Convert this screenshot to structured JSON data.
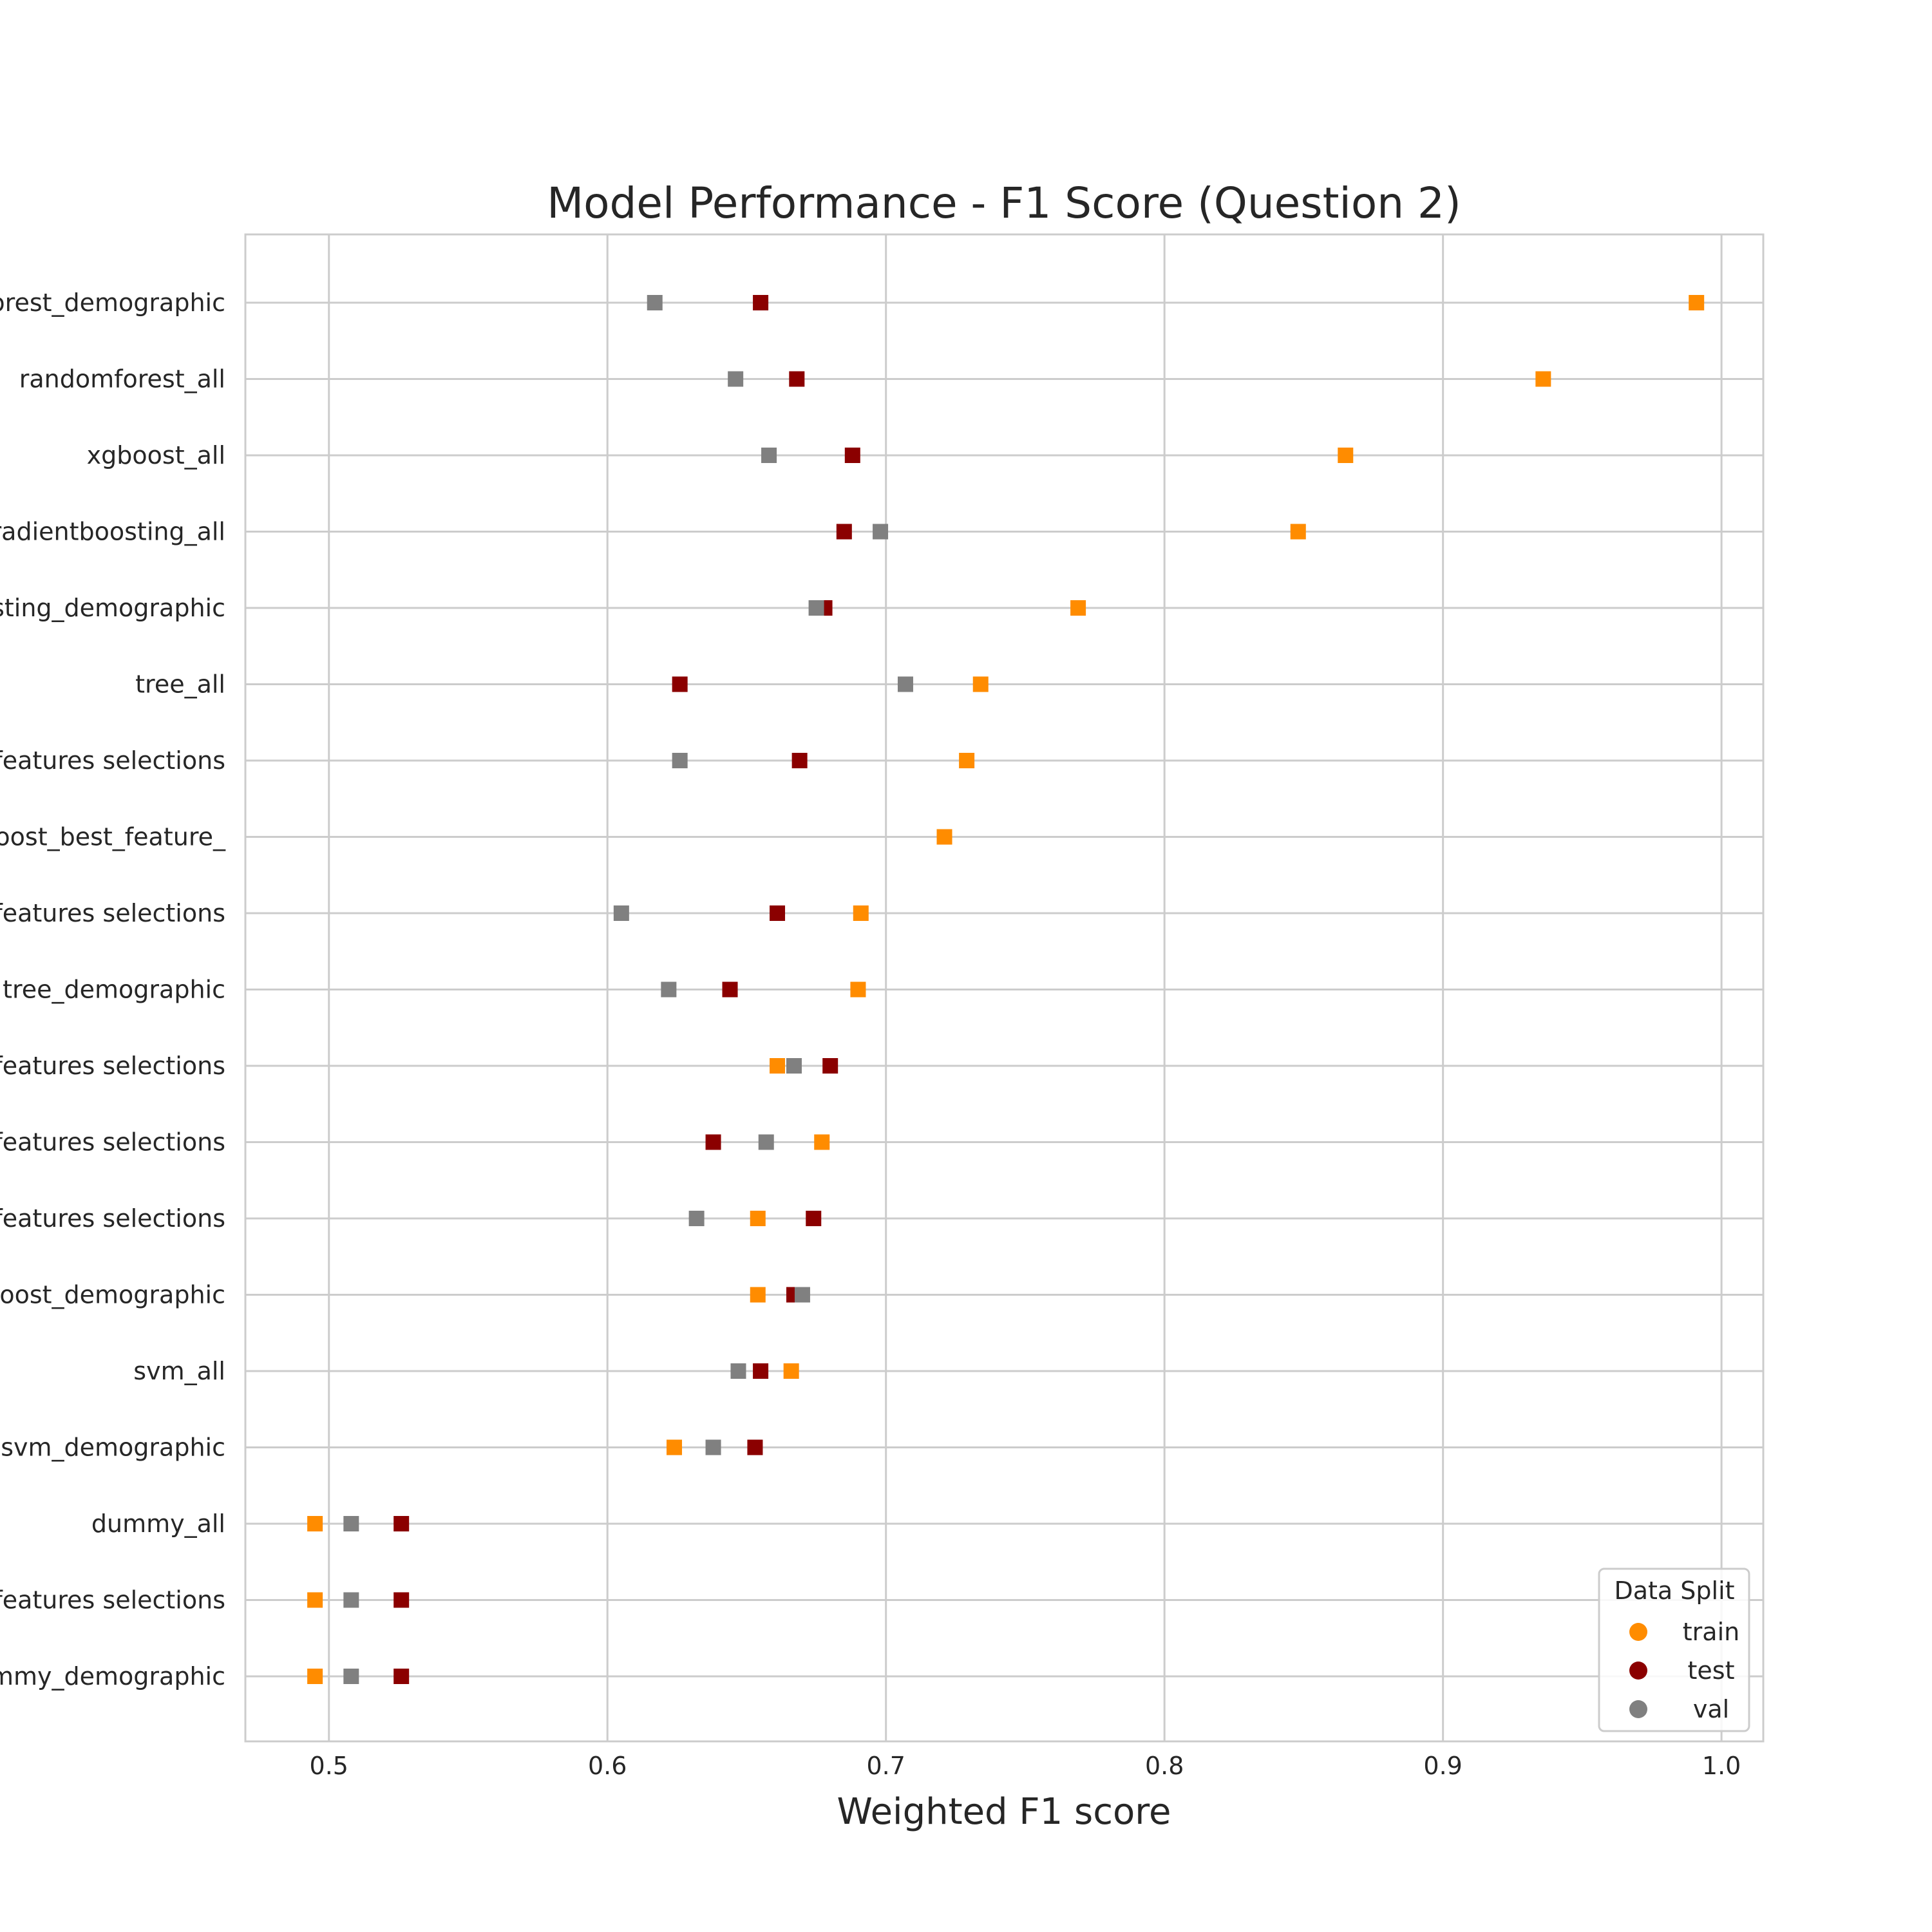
{
  "chart_data": {
    "type": "scatter",
    "title": "Model Performance - F1 Score (Question 2)",
    "xlabel": "Weighted F1 score",
    "ylabel": "",
    "xlim": [
      0.47,
      1.015
    ],
    "xticks": [
      0.5,
      0.6,
      0.7,
      0.8,
      0.9,
      1.0
    ],
    "xtick_labels": [
      "0.5",
      "0.6",
      "0.7",
      "0.8",
      "0.9",
      "1.0"
    ],
    "grid": true,
    "legend_position": "bottom-right",
    "legend_title": "Data Split",
    "categories": [
      "orest_demographic",
      "randomforest_all",
      "xgboost_all",
      "radientboosting_all",
      "sting_demographic",
      "tree_all",
      "features selections",
      "oost_best_feature_",
      "features selections",
      "tree_demographic",
      "features selections",
      "features selections",
      "features selections",
      "boost_demographic",
      "svm_all",
      "svm_demographic",
      "dummy_all",
      "features selections",
      "mmy_demographic"
    ],
    "series": [
      {
        "name": "train",
        "color": "#ff8c00",
        "values": [
          0.991,
          0.936,
          0.865,
          0.848,
          0.769,
          0.734,
          0.729,
          0.721,
          0.691,
          0.69,
          0.661,
          0.677,
          0.654,
          0.654,
          0.666,
          0.624,
          0.495,
          0.495,
          0.495
        ]
      },
      {
        "name": "test",
        "color": "#8b0000",
        "values": [
          0.655,
          0.668,
          0.688,
          0.685,
          0.678,
          0.626,
          0.669,
          null,
          0.661,
          0.644,
          0.68,
          0.638,
          0.674,
          0.667,
          0.655,
          0.653,
          0.526,
          0.526,
          0.526
        ]
      },
      {
        "name": "val",
        "color": "#808080",
        "values": [
          0.617,
          0.646,
          0.658,
          0.698,
          0.675,
          0.707,
          0.626,
          null,
          0.605,
          0.622,
          0.667,
          0.657,
          0.632,
          0.67,
          0.647,
          0.638,
          0.508,
          0.508,
          0.508
        ]
      }
    ]
  }
}
